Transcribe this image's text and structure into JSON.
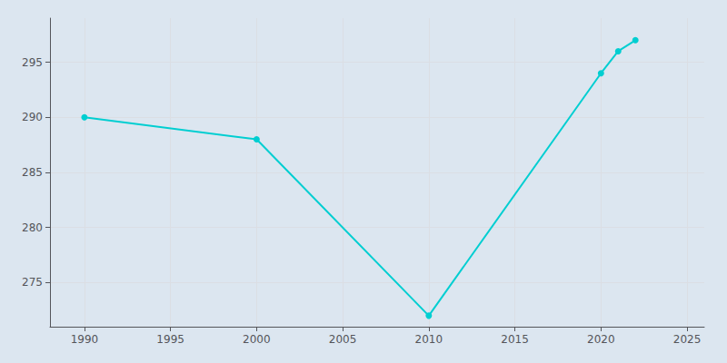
{
  "chart_data": {
    "type": "line",
    "x": [
      1990,
      2000,
      2010,
      2020,
      2021,
      2022
    ],
    "values": [
      290,
      288,
      272,
      294,
      296,
      297
    ],
    "color": "#00CED1",
    "marker": "circle",
    "xlim": [
      1988,
      2026
    ],
    "ylim": [
      271,
      299
    ],
    "xticks": [
      1990,
      1995,
      2000,
      2005,
      2010,
      2015,
      2020,
      2025
    ],
    "yticks": [
      275,
      280,
      285,
      290,
      295
    ],
    "grid": true
  }
}
